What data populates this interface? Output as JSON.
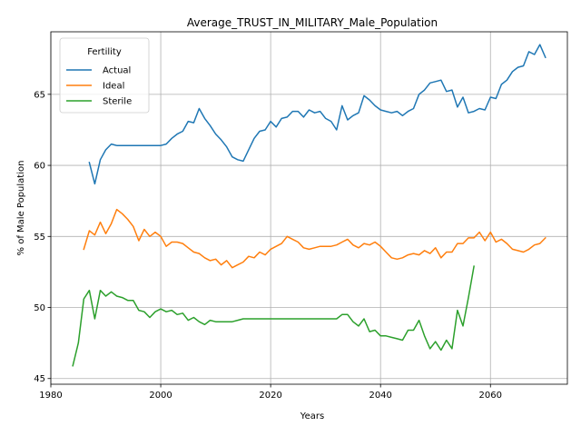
{
  "chart_data": {
    "type": "line",
    "title": "Average_TRUST_IN_MILITARY_Male_Population",
    "xlabel": "Years",
    "ylabel": "% of Male Population",
    "xlim": [
      1980,
      2074
    ],
    "ylim": [
      44.6,
      69.4
    ],
    "xticks": [
      1980,
      2000,
      2020,
      2040,
      2060
    ],
    "yticks": [
      45,
      50,
      55,
      60,
      65
    ],
    "grid": true,
    "legend": {
      "title": "Fertility",
      "placement": "top-left"
    },
    "series": [
      {
        "name": "Actual",
        "color": "#1f77b4",
        "x": [
          1987,
          1988,
          1989,
          1990,
          1991,
          1992,
          1993,
          1994,
          1995,
          1996,
          1997,
          1998,
          1999,
          2000,
          2001,
          2002,
          2003,
          2004,
          2005,
          2006,
          2007,
          2008,
          2009,
          2010,
          2011,
          2012,
          2013,
          2014,
          2015,
          2016,
          2017,
          2018,
          2019,
          2020,
          2021,
          2022,
          2023,
          2024,
          2025,
          2026,
          2027,
          2028,
          2029,
          2030,
          2031,
          2032,
          2033,
          2034,
          2035,
          2036,
          2037,
          2038,
          2039,
          2040,
          2041,
          2042,
          2043,
          2044,
          2045,
          2046,
          2047,
          2048,
          2049,
          2050,
          2051,
          2052,
          2053,
          2054,
          2055,
          2056,
          2057,
          2058,
          2059,
          2060,
          2061,
          2062,
          2063,
          2064,
          2065,
          2066,
          2067,
          2068,
          2069,
          2070
        ],
        "y": [
          60.2,
          58.7,
          60.4,
          61.1,
          61.5,
          61.4,
          61.4,
          61.4,
          61.4,
          61.4,
          61.4,
          61.4,
          61.4,
          61.4,
          61.5,
          61.9,
          62.2,
          62.4,
          63.1,
          63.0,
          64.0,
          63.3,
          62.8,
          62.2,
          61.8,
          61.3,
          60.6,
          60.4,
          60.3,
          61.1,
          61.9,
          62.4,
          62.5,
          63.1,
          62.7,
          63.3,
          63.4,
          63.8,
          63.8,
          63.4,
          63.9,
          63.7,
          63.8,
          63.3,
          63.1,
          62.5,
          64.2,
          63.2,
          63.5,
          63.7,
          64.9,
          64.6,
          64.2,
          63.9,
          63.8,
          63.7,
          63.8,
          63.5,
          63.8,
          64.0,
          65.0,
          65.3,
          65.8,
          65.9,
          66.0,
          65.2,
          65.3,
          64.1,
          64.8,
          63.7,
          63.8,
          64.0,
          63.9,
          64.8,
          64.7,
          65.7,
          66.0,
          66.6,
          66.9,
          67.0,
          68.0,
          67.8,
          68.5,
          67.6
        ]
      },
      {
        "name": "Ideal",
        "color": "#ff7f0e",
        "x": [
          1986,
          1987,
          1988,
          1989,
          1990,
          1991,
          1992,
          1993,
          1994,
          1995,
          1996,
          1997,
          1998,
          1999,
          2000,
          2001,
          2002,
          2003,
          2004,
          2005,
          2006,
          2007,
          2008,
          2009,
          2010,
          2011,
          2012,
          2013,
          2014,
          2015,
          2016,
          2017,
          2018,
          2019,
          2020,
          2021,
          2022,
          2023,
          2024,
          2025,
          2026,
          2027,
          2028,
          2029,
          2030,
          2031,
          2032,
          2033,
          2034,
          2035,
          2036,
          2037,
          2038,
          2039,
          2040,
          2041,
          2042,
          2043,
          2044,
          2045,
          2046,
          2047,
          2048,
          2049,
          2050,
          2051,
          2052,
          2053,
          2054,
          2055,
          2056,
          2057,
          2058,
          2059,
          2060,
          2061,
          2062,
          2063,
          2064,
          2065,
          2066,
          2067,
          2068,
          2069,
          2070
        ],
        "y": [
          54.1,
          55.4,
          55.1,
          56.0,
          55.2,
          55.9,
          56.9,
          56.6,
          56.2,
          55.7,
          54.7,
          55.5,
          55.0,
          55.3,
          55.0,
          54.3,
          54.6,
          54.6,
          54.5,
          54.2,
          53.9,
          53.8,
          53.5,
          53.3,
          53.4,
          53.0,
          53.3,
          52.8,
          53.0,
          53.2,
          53.6,
          53.5,
          53.9,
          53.7,
          54.1,
          54.3,
          54.5,
          55.0,
          54.8,
          54.6,
          54.2,
          54.1,
          54.2,
          54.3,
          54.3,
          54.3,
          54.4,
          54.6,
          54.8,
          54.4,
          54.2,
          54.5,
          54.4,
          54.6,
          54.3,
          53.9,
          53.5,
          53.4,
          53.5,
          53.7,
          53.8,
          53.7,
          54.0,
          53.8,
          54.2,
          53.5,
          53.9,
          53.9,
          54.5,
          54.5,
          54.9,
          54.9,
          55.3,
          54.7,
          55.3,
          54.6,
          54.8,
          54.5,
          54.1,
          54.0,
          53.9,
          54.1,
          54.4,
          54.5,
          54.9
        ]
      },
      {
        "name": "Sterile",
        "color": "#2ca02c",
        "x": [
          1984,
          1985,
          1986,
          1987,
          1988,
          1989,
          1990,
          1991,
          1992,
          1993,
          1994,
          1995,
          1996,
          1997,
          1998,
          1999,
          2000,
          2001,
          2002,
          2003,
          2004,
          2005,
          2006,
          2007,
          2008,
          2009,
          2010,
          2011,
          2012,
          2013,
          2014,
          2015,
          2016,
          2017,
          2018,
          2019,
          2020,
          2021,
          2022,
          2023,
          2024,
          2025,
          2026,
          2027,
          2028,
          2029,
          2030,
          2031,
          2032,
          2033,
          2034,
          2035,
          2036,
          2037,
          2038,
          2039,
          2040,
          2041,
          2042,
          2043,
          2044,
          2045,
          2046,
          2047,
          2048,
          2049,
          2050,
          2051,
          2052,
          2053,
          2054,
          2055,
          2056,
          2057
        ],
        "y": [
          45.9,
          47.5,
          50.6,
          51.2,
          49.2,
          51.2,
          50.8,
          51.1,
          50.8,
          50.7,
          50.5,
          50.5,
          49.8,
          49.7,
          49.3,
          49.7,
          49.9,
          49.7,
          49.8,
          49.5,
          49.6,
          49.1,
          49.3,
          49.0,
          48.8,
          49.1,
          49.0,
          49.0,
          49.0,
          49.0,
          49.1,
          49.2,
          49.2,
          49.2,
          49.2,
          49.2,
          49.2,
          49.2,
          49.2,
          49.2,
          49.2,
          49.2,
          49.2,
          49.2,
          49.2,
          49.2,
          49.2,
          49.2,
          49.2,
          49.5,
          49.5,
          49.0,
          48.7,
          49.2,
          48.3,
          48.4,
          48.0,
          48.0,
          47.9,
          47.8,
          47.7,
          48.4,
          48.4,
          49.1,
          48.0,
          47.1,
          47.6,
          47.0,
          47.7,
          47.1,
          49.8,
          48.7,
          50.7,
          52.9
        ]
      }
    ]
  }
}
